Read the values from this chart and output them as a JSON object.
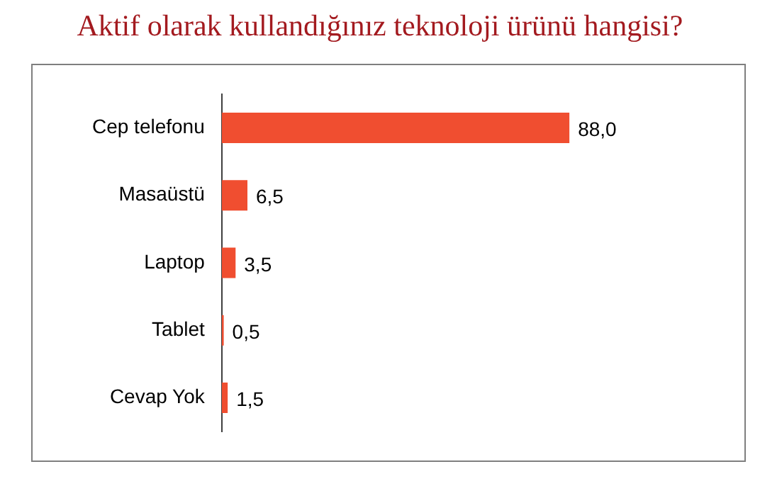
{
  "chart_data": {
    "type": "bar",
    "orientation": "horizontal",
    "title": "Aktif olarak kullandığınız teknoloji ürünü hangisi?",
    "categories": [
      "Cep telefonu",
      "Masaüstü",
      "Laptop",
      "Tablet",
      "Cevap Yok"
    ],
    "values": [
      88.0,
      6.5,
      3.5,
      0.5,
      1.5
    ],
    "value_labels": [
      "88,0",
      "6,5",
      "3,5",
      "0,5",
      "1,5"
    ],
    "color": "#f04e30",
    "tick_labels": "y"
  }
}
